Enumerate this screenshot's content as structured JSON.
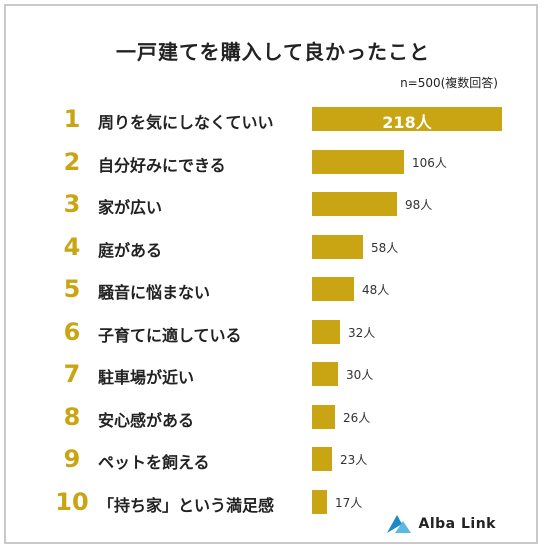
{
  "title": "一戸建てを購入して良かったこと",
  "note": "n=500(複数回答)",
  "brand": {
    "name": "Alba Link",
    "logo_icon": "alba-link-logo-icon",
    "color": "#1c88c7"
  },
  "bar_color": "#c9a514",
  "chart_data": {
    "type": "bar",
    "orientation": "horizontal",
    "unit": "人",
    "categories": [
      "周りを気にしなくていい",
      "自分好みにできる",
      "家が広い",
      "庭がある",
      "騒音に悩まない",
      "子育てに適している",
      "駐車場が近い",
      "安心感がある",
      "ペットを飼える",
      "「持ち家」という満足感"
    ],
    "ranks": [
      "1",
      "2",
      "3",
      "4",
      "5",
      "6",
      "7",
      "8",
      "9",
      "10"
    ],
    "values": [
      218,
      106,
      98,
      58,
      48,
      32,
      30,
      26,
      23,
      17
    ],
    "value_labels": [
      "218人",
      "106人",
      "98人",
      "58人",
      "48人",
      "32人",
      "30人",
      "26人",
      "23人",
      "17人"
    ]
  }
}
